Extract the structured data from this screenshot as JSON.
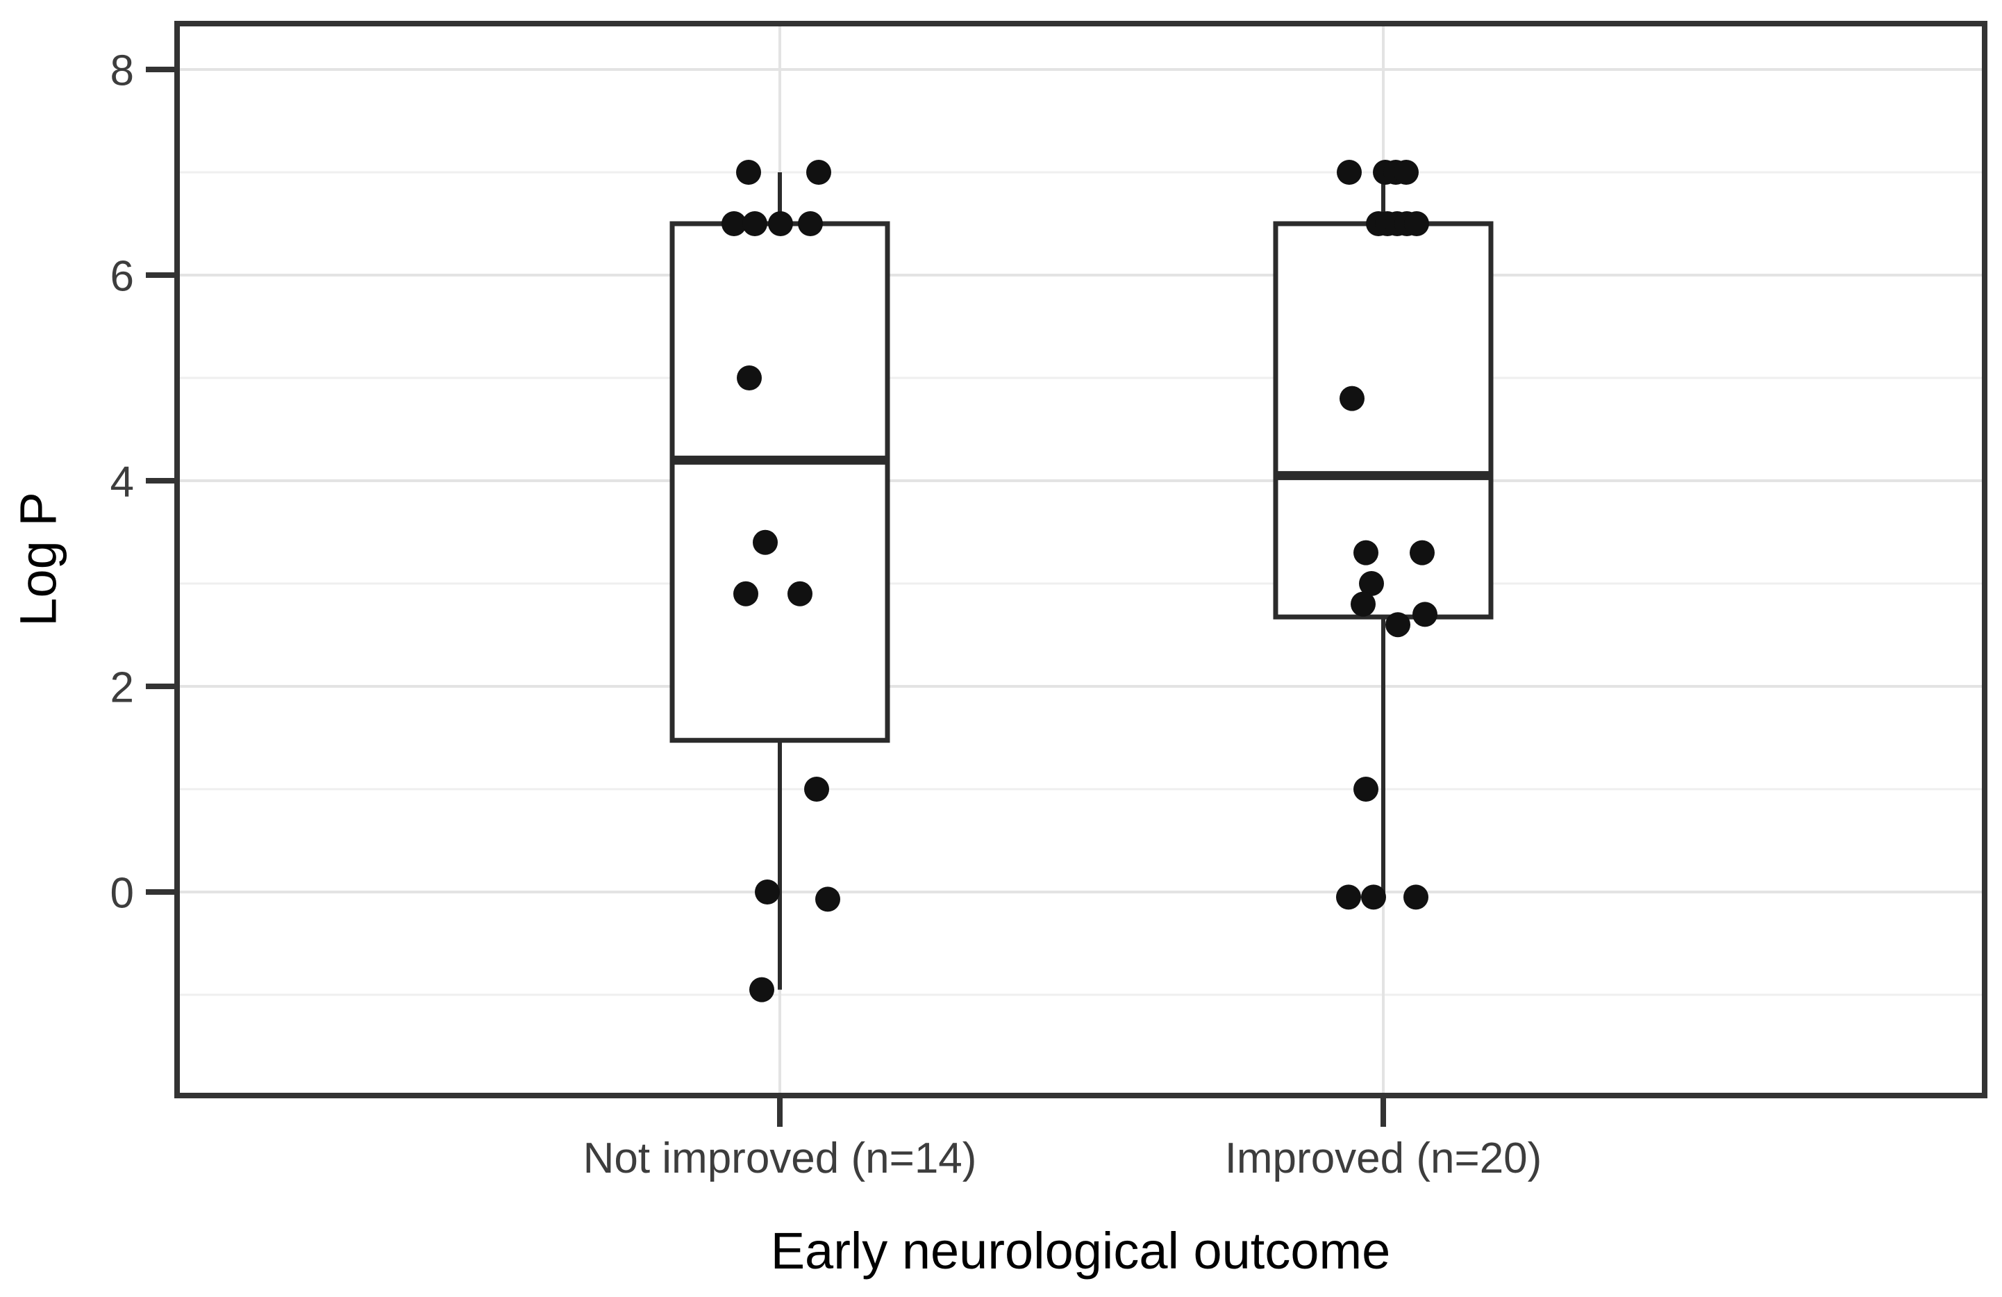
{
  "chart_data": {
    "type": "boxplot",
    "subtype": "boxplot-with-jittered-points",
    "title": "",
    "xlabel": "Early neurological outcome",
    "ylabel": "Log P",
    "y_ticks": [
      8,
      6,
      4,
      2,
      0
    ],
    "y_minor_ticks": [
      7,
      5,
      3,
      1,
      -1
    ],
    "ylim": [
      -1.98,
      8.45
    ],
    "grid": "major-and-minor",
    "legend": "none",
    "x_categories": [
      "Not improved (n=14)",
      "Improved (n=20)"
    ],
    "groups": [
      {
        "label": "Not improved (n=14)",
        "n": 14,
        "box": {
          "q1": 1.475,
          "median": 4.2,
          "q3": 6.5,
          "whisker_low": -0.95,
          "whisker_high": 7.0
        },
        "values": [
          7.0,
          7.0,
          6.5,
          6.5,
          6.5,
          6.5,
          5.0,
          3.4,
          2.9,
          2.9,
          1.0,
          0.0,
          -0.07,
          -0.95
        ],
        "points": [
          {
            "v": 7.0,
            "dx": -45
          },
          {
            "v": 7.0,
            "dx": 56
          },
          {
            "v": 6.5,
            "dx": -66
          },
          {
            "v": 6.5,
            "dx": -36
          },
          {
            "v": 6.5,
            "dx": 1
          },
          {
            "v": 6.5,
            "dx": 44
          },
          {
            "v": 5.0,
            "dx": -44
          },
          {
            "v": 3.4,
            "dx": -21
          },
          {
            "v": 2.9,
            "dx": -49
          },
          {
            "v": 2.9,
            "dx": 29
          },
          {
            "v": 1.0,
            "dx": 53
          },
          {
            "v": 0.0,
            "dx": -18
          },
          {
            "v": -0.07,
            "dx": 69
          },
          {
            "v": -0.95,
            "dx": -26
          }
        ]
      },
      {
        "label": "Improved (n=20)",
        "n": 20,
        "box": {
          "q1": 2.675,
          "median": 4.05,
          "q3": 6.5,
          "whisker_low": -0.05,
          "whisker_high": 7.0
        },
        "values": [
          7.0,
          7.0,
          7.0,
          7.0,
          6.5,
          6.5,
          6.5,
          6.5,
          6.5,
          4.8,
          3.3,
          3.3,
          3.0,
          2.8,
          2.7,
          2.6,
          1.0,
          -0.05,
          -0.05,
          -0.05
        ],
        "points": [
          {
            "v": 7.0,
            "dx": -49
          },
          {
            "v": 7.0,
            "dx": 3
          },
          {
            "v": 7.0,
            "dx": 18
          },
          {
            "v": 7.0,
            "dx": 33
          },
          {
            "v": 6.5,
            "dx": -7
          },
          {
            "v": 6.5,
            "dx": 6
          },
          {
            "v": 6.5,
            "dx": 20
          },
          {
            "v": 6.5,
            "dx": 34
          },
          {
            "v": 6.5,
            "dx": 48
          },
          {
            "v": 4.8,
            "dx": -45
          },
          {
            "v": 3.3,
            "dx": -25
          },
          {
            "v": 3.3,
            "dx": 56
          },
          {
            "v": 3.0,
            "dx": -17
          },
          {
            "v": 2.8,
            "dx": -29
          },
          {
            "v": 2.7,
            "dx": 60
          },
          {
            "v": 2.6,
            "dx": 21
          },
          {
            "v": 1.0,
            "dx": -25
          },
          {
            "v": -0.05,
            "dx": -50
          },
          {
            "v": -0.05,
            "dx": -14
          },
          {
            "v": -0.05,
            "dx": 47
          }
        ]
      }
    ],
    "colors": {
      "background": "#ffffff",
      "panel_background": "#ffffff",
      "panel_border": "#333333",
      "grid_major": "#e3e3e3",
      "grid_minor": "#efefef",
      "tick": "#333333",
      "tick_label": "#3d3d3d",
      "axis_title": "#000000",
      "box_stroke": "#2b2b2b",
      "box_fill": "#ffffff",
      "points": "#111111"
    }
  }
}
